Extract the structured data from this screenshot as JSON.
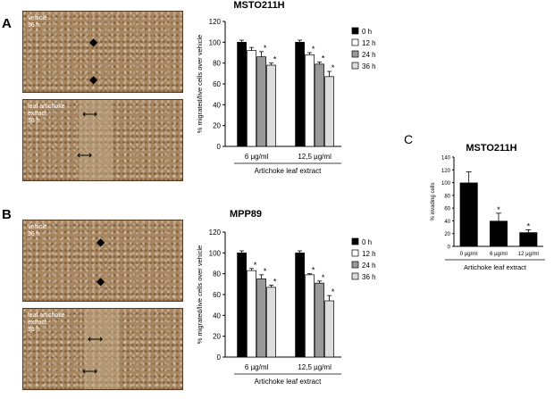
{
  "panels": {
    "a": {
      "letter": "A",
      "title": "MSTO211H",
      "images": [
        {
          "label": "vehicle\n36 h"
        },
        {
          "label": "leaf artichoke\nextract\n36 h"
        }
      ]
    },
    "b": {
      "letter": "B",
      "title": "MPP89",
      "images": [
        {
          "label": "vehicle\n36 h"
        },
        {
          "label": "leaf artichoke\nextract\n36 h"
        }
      ]
    },
    "c": {
      "letter": "C",
      "title": "MSTO211H"
    }
  },
  "arrow_glyphs": {
    "vertical": "◆",
    "horizontal": "⟷"
  },
  "colors": {
    "0h": "#000000",
    "12h": "#ffffff",
    "24h": "#999999",
    "36h": "#dddddd",
    "axis": "#000000"
  },
  "chart_data": [
    {
      "type": "bar",
      "title": "MSTO211H",
      "categories": [
        "6 µg/ml",
        "12,5 µg/ml"
      ],
      "group_label": "Artichoke leaf extract",
      "ylabel": "% migrated/live cells over vehicle",
      "ylim": [
        0,
        120
      ],
      "yticks": [
        0,
        20,
        40,
        60,
        80,
        100,
        120
      ],
      "legend": [
        "0 h",
        "12 h",
        "24 h",
        "36 h"
      ],
      "legend_position": "right",
      "series": [
        {
          "name": "0 h",
          "values": [
            100,
            100
          ],
          "errors": [
            2,
            2
          ],
          "sig": [
            "",
            ""
          ]
        },
        {
          "name": "12 h",
          "values": [
            92,
            88
          ],
          "errors": [
            3,
            2
          ],
          "sig": [
            "",
            "*"
          ]
        },
        {
          "name": "24 h",
          "values": [
            86,
            79
          ],
          "errors": [
            5,
            2
          ],
          "sig": [
            "*",
            "*"
          ]
        },
        {
          "name": "36 h",
          "values": [
            78,
            67
          ],
          "errors": [
            2,
            5
          ],
          "sig": [
            "*",
            "*"
          ]
        }
      ]
    },
    {
      "type": "bar",
      "title": "MPP89",
      "categories": [
        "6 µg/ml",
        "12,5 µg/ml"
      ],
      "group_label": "Artichoke leaf extract",
      "ylabel": "% migrated/live cells over vehicle",
      "ylim": [
        0,
        120
      ],
      "yticks": [
        0,
        20,
        40,
        60,
        80,
        100,
        120
      ],
      "legend": [
        "0 h",
        "12 h",
        "24 h",
        "36 h"
      ],
      "legend_position": "right",
      "series": [
        {
          "name": "0 h",
          "values": [
            100,
            100
          ],
          "errors": [
            2,
            2
          ],
          "sig": [
            "",
            ""
          ]
        },
        {
          "name": "12 h",
          "values": [
            83,
            79
          ],
          "errors": [
            2,
            1
          ],
          "sig": [
            "*",
            "*"
          ]
        },
        {
          "name": "24 h",
          "values": [
            75,
            71
          ],
          "errors": [
            4,
            2
          ],
          "sig": [
            "*",
            "*"
          ]
        },
        {
          "name": "36 h",
          "values": [
            67,
            54
          ],
          "errors": [
            2,
            5
          ],
          "sig": [
            "*",
            "*"
          ]
        }
      ]
    },
    {
      "type": "bar",
      "title": "MSTO211H",
      "categories": [
        "0 µg/ml",
        "6 µg/ml",
        "12 µg/ml"
      ],
      "group_label": "Artichoke leaf extract",
      "ylabel": "% invading cells",
      "ylim": [
        0,
        140
      ],
      "yticks": [
        0,
        20,
        40,
        60,
        80,
        100,
        120,
        140
      ],
      "values": [
        100,
        40,
        22
      ],
      "errors": [
        17,
        12,
        4
      ],
      "sig": [
        "",
        "*",
        "*"
      ]
    }
  ]
}
